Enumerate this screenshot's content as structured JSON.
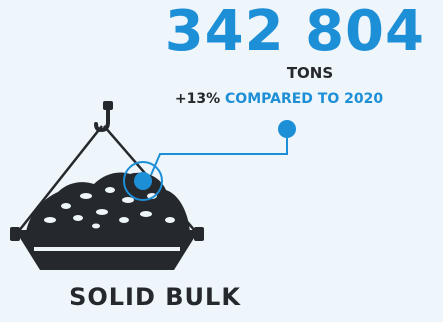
{
  "stat": {
    "value": "342 804",
    "unit": "TONS",
    "change_value": "+13%",
    "change_text": "COMPARED TO 2020"
  },
  "cargo": {
    "title": "SOLID BULK",
    "icon": "crane-load-bucket-icon"
  },
  "colors": {
    "accent": "#1d8fd6",
    "text": "#25282c",
    "background": "#eef5fb"
  }
}
